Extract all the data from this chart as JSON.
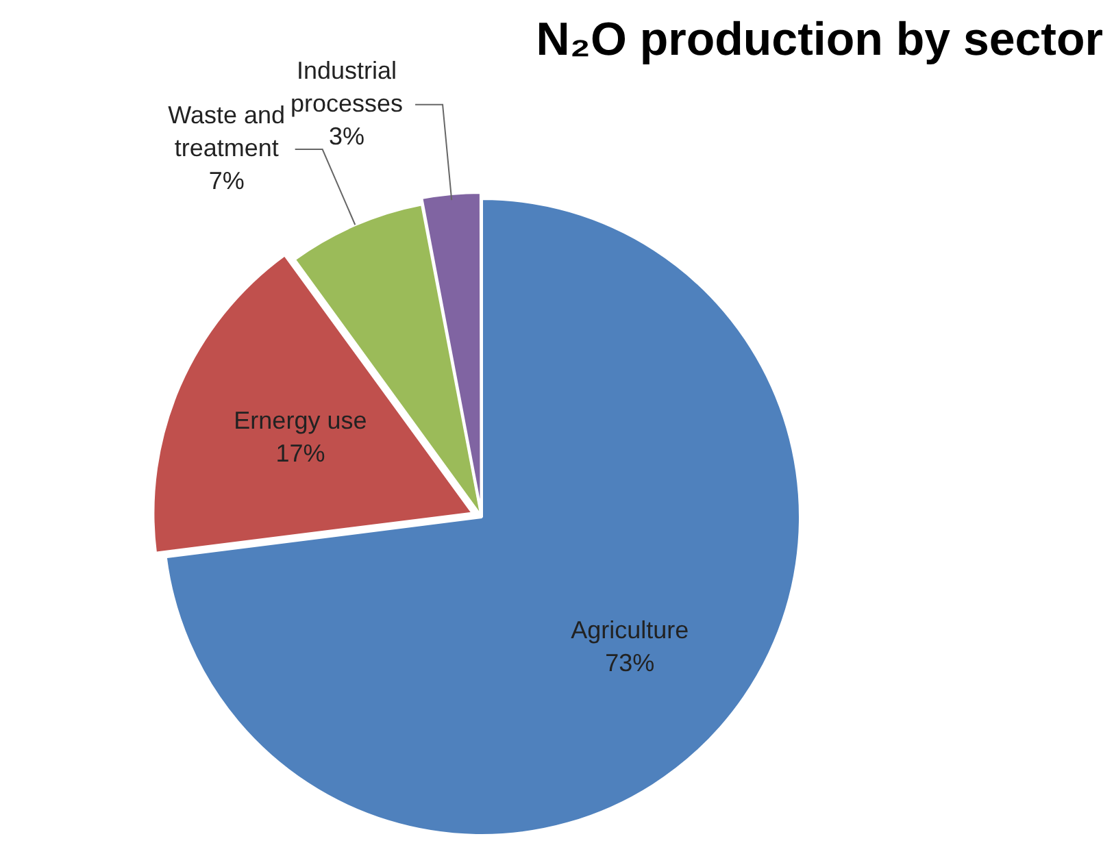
{
  "chart_data": {
    "type": "pie",
    "title": "N₂O production by sector",
    "categories": [
      "Agriculture",
      "Ernergy use",
      "Waste and treatment",
      "Industrial processes"
    ],
    "values": [
      73,
      17,
      7,
      3
    ],
    "value_labels": [
      "73%",
      "17%",
      "7%",
      "3%"
    ],
    "colors": [
      "#4f81bd",
      "#c0504d",
      "#9bbb59",
      "#8064a2"
    ],
    "legend": false
  }
}
